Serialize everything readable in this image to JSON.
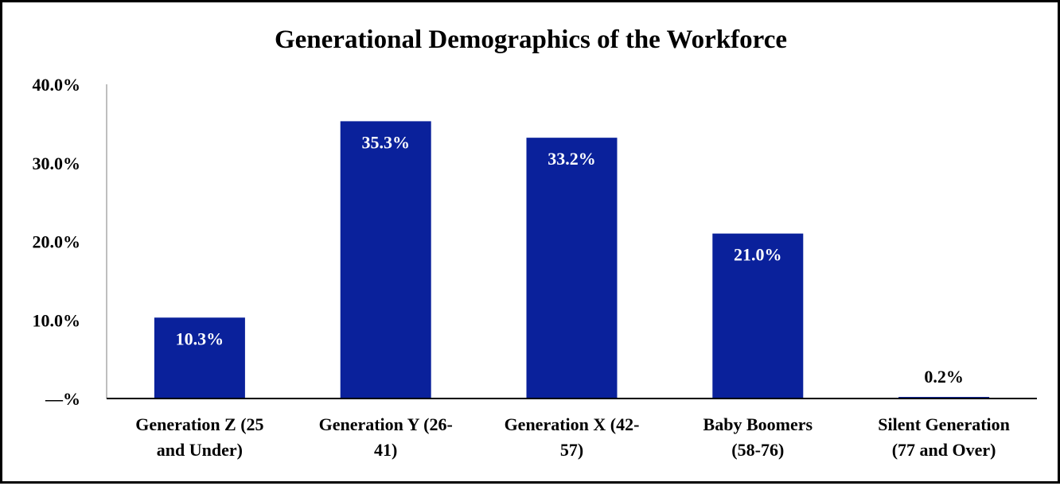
{
  "chart_data": {
    "type": "bar",
    "title": "Generational Demographics of the Workforce",
    "xlabel": "",
    "ylabel": "",
    "ylim": [
      0,
      40
    ],
    "y_ticks": [
      "—%",
      "10.0%",
      "20.0%",
      "30.0%",
      "40.0%"
    ],
    "grid": false,
    "categories": [
      [
        "Generation Z (25",
        "and Under)"
      ],
      [
        "Generation Y (26-",
        "41)"
      ],
      [
        "Generation X (42-",
        "57)"
      ],
      [
        "Baby Boomers",
        "(58-76)"
      ],
      [
        "Silent Generation",
        "(77 and Over)"
      ]
    ],
    "values": [
      10.3,
      35.3,
      33.2,
      21.0,
      0.2
    ],
    "data_labels": [
      "10.3%",
      "35.3%",
      "33.2%",
      "21.0%",
      "0.2%"
    ],
    "colors": {
      "bar": "#0a219b",
      "label_inside": "#ffffff",
      "label_outside": "#000000",
      "axis": "#000000",
      "y_axis_line": "#bfbfbf"
    }
  }
}
